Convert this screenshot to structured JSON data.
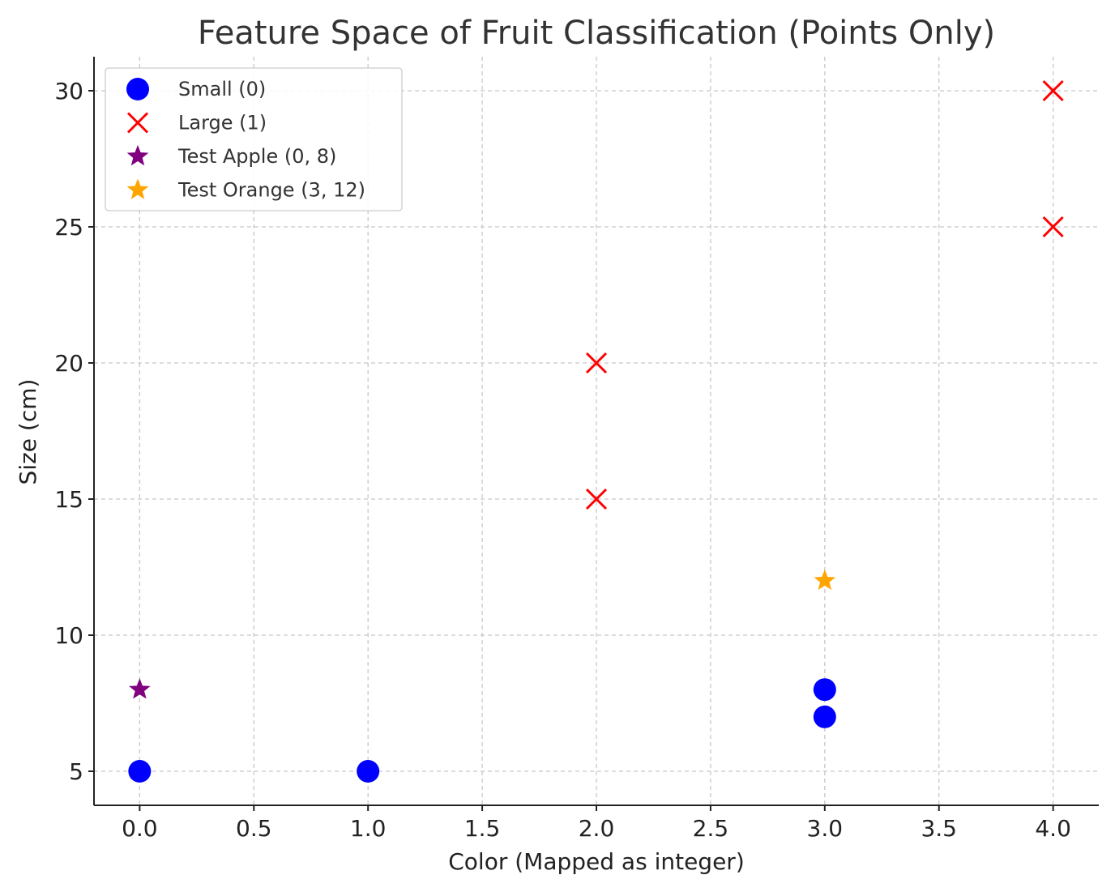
{
  "chart_data": {
    "type": "scatter",
    "title": "Feature Space of Fruit Classification (Points Only)",
    "xlabel": "Color (Mapped as integer)",
    "ylabel": "Size (cm)",
    "xlim": [
      -0.2,
      4.2
    ],
    "ylim": [
      3.75,
      31.25
    ],
    "xticks": [
      0.0,
      0.5,
      1.0,
      1.5,
      2.0,
      2.5,
      3.0,
      3.5,
      4.0
    ],
    "xtick_labels": [
      "0.0",
      "0.5",
      "1.0",
      "1.5",
      "2.0",
      "2.5",
      "3.0",
      "3.5",
      "4.0"
    ],
    "yticks": [
      5,
      10,
      15,
      20,
      25,
      30
    ],
    "ytick_labels": [
      "5",
      "10",
      "15",
      "20",
      "25",
      "30"
    ],
    "grid": true,
    "legend_position": "top-left",
    "series": [
      {
        "name": "Small (0)",
        "marker": "circle",
        "color": "#0000ff",
        "points": [
          [
            0,
            5
          ],
          [
            1,
            5
          ],
          [
            3,
            7
          ],
          [
            3,
            8
          ]
        ]
      },
      {
        "name": "Large (1)",
        "marker": "x",
        "color": "#ff0000",
        "points": [
          [
            2,
            15
          ],
          [
            2,
            20
          ],
          [
            4,
            25
          ],
          [
            4,
            30
          ]
        ]
      },
      {
        "name": "Test Apple (0, 8)",
        "marker": "star",
        "color": "#800080",
        "points": [
          [
            0,
            8
          ]
        ]
      },
      {
        "name": "Test Orange (3, 12)",
        "marker": "star",
        "color": "#ffa500",
        "points": [
          [
            3,
            12
          ]
        ]
      }
    ]
  }
}
